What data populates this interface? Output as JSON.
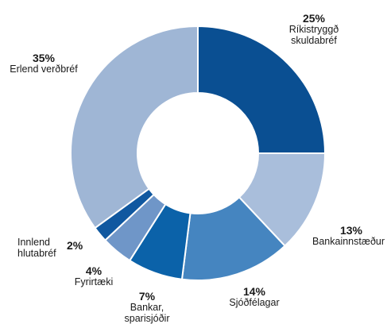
{
  "chart_data": {
    "type": "pie",
    "donut": true,
    "slices": [
      {
        "label": "Ríkistryggð skuldabréf",
        "label_lines": [
          "Ríkistryggð",
          "skuldabréf"
        ],
        "value": 25,
        "pct_label": "25%",
        "color": "#0a4f92"
      },
      {
        "label": "Bankainnstæður",
        "label_lines": [
          "Bankainnstæður"
        ],
        "value": 13,
        "pct_label": "13%",
        "color": "#a9bedb"
      },
      {
        "label": "Sjóðfélagar",
        "label_lines": [
          "Sjóðfélagar"
        ],
        "value": 14,
        "pct_label": "14%",
        "color": "#4585c0"
      },
      {
        "label": "Bankar, sparisjóðir",
        "label_lines": [
          "Bankar,",
          "sparisjóðir"
        ],
        "value": 7,
        "pct_label": "7%",
        "color": "#0b62a9"
      },
      {
        "label": "Fyrirtæki",
        "label_lines": [
          "Fyrirtæki"
        ],
        "value": 4,
        "pct_label": "4%",
        "color": "#6f96c8"
      },
      {
        "label": "Innlend hlutabréf",
        "label_lines": [
          "Innlend",
          "hlutabréf"
        ],
        "value": 2,
        "pct_label": "2%",
        "color": "#1058a0"
      },
      {
        "label": "Erlend verðbréf",
        "label_lines": [
          "Erlend verðbréf"
        ],
        "value": 35,
        "pct_label": "35%",
        "color": "#9fb6d5"
      }
    ]
  }
}
